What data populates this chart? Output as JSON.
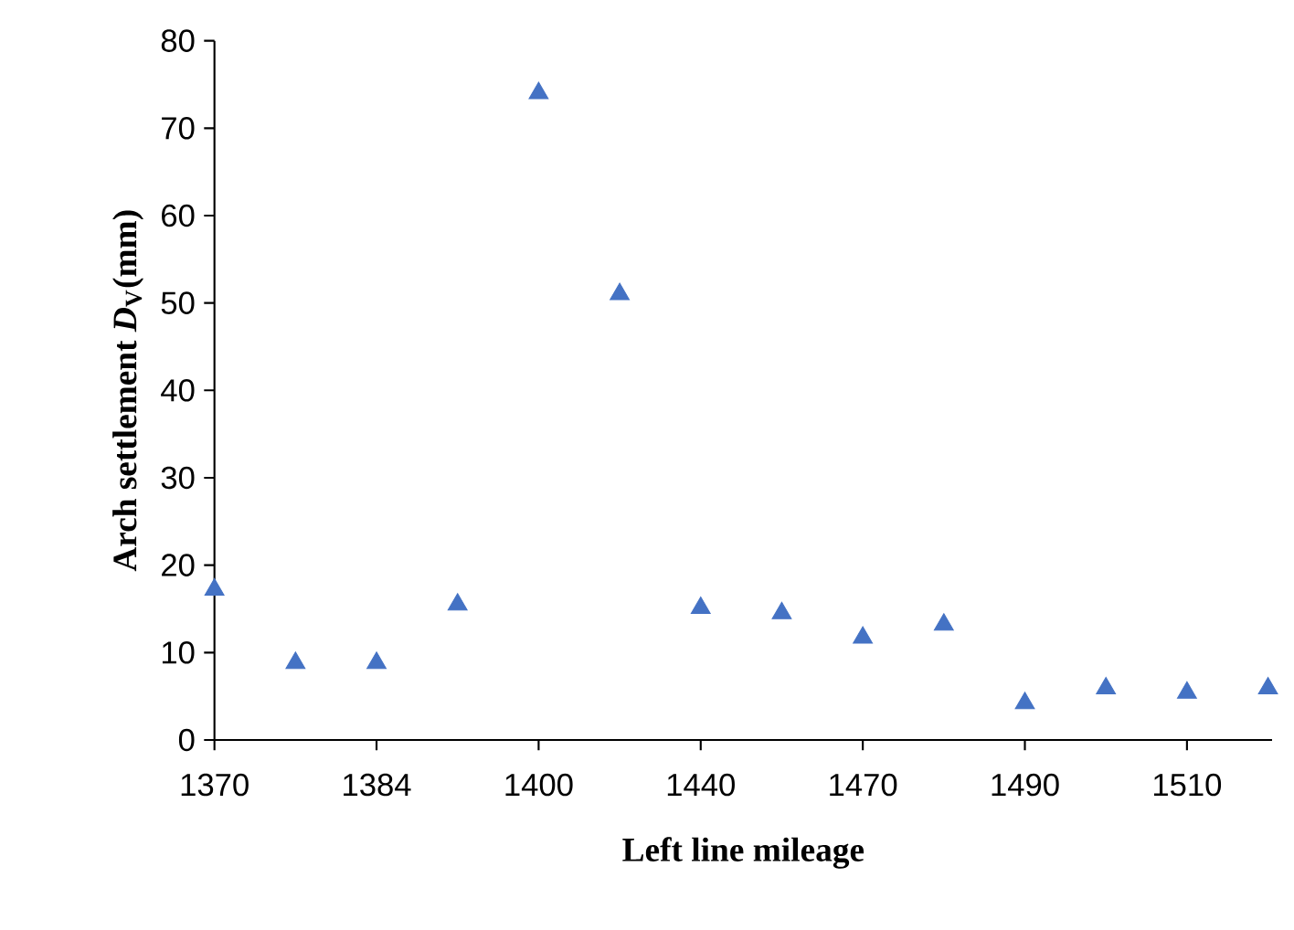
{
  "chart_data": {
    "type": "scatter",
    "xlabel": "Left line mileage",
    "ylabel": "Arch settlement *D*$_{V}$(mm)",
    "categories": [
      "1370",
      null,
      "1384",
      null,
      "1400",
      null,
      "1440",
      null,
      "1470",
      null,
      "1490",
      null,
      "1510",
      null
    ],
    "values": [
      17.2,
      8.8,
      8.8,
      15.5,
      74,
      51,
      15.1,
      14.5,
      11.7,
      13.2,
      4.2,
      5.9,
      5.4,
      5.9
    ],
    "color": "#4472c4",
    "marker": "triangle",
    "ylim": [
      0,
      80
    ],
    "yticks": [
      0,
      10,
      20,
      30,
      40,
      50,
      60,
      70,
      80
    ],
    "grid": false
  }
}
